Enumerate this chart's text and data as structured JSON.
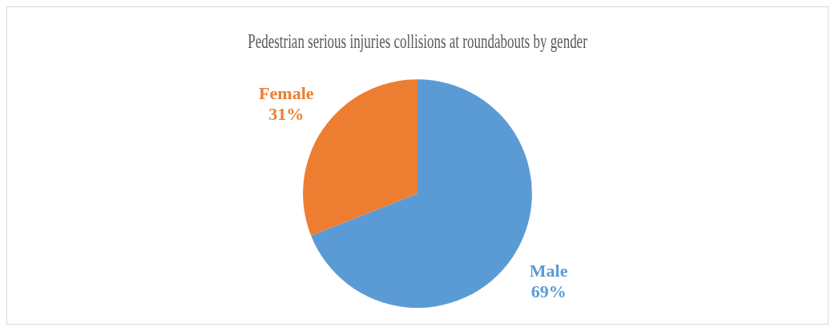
{
  "chart_data": {
    "type": "pie",
    "title": "Pedestrian serious injuries collisions at roundabouts by gender",
    "categories": [
      "Male",
      "Female"
    ],
    "values": [
      69,
      31
    ],
    "value_labels": [
      "69%",
      "31%"
    ],
    "colors": [
      "#5b9bd5",
      "#ed7d31"
    ],
    "legend": false
  }
}
